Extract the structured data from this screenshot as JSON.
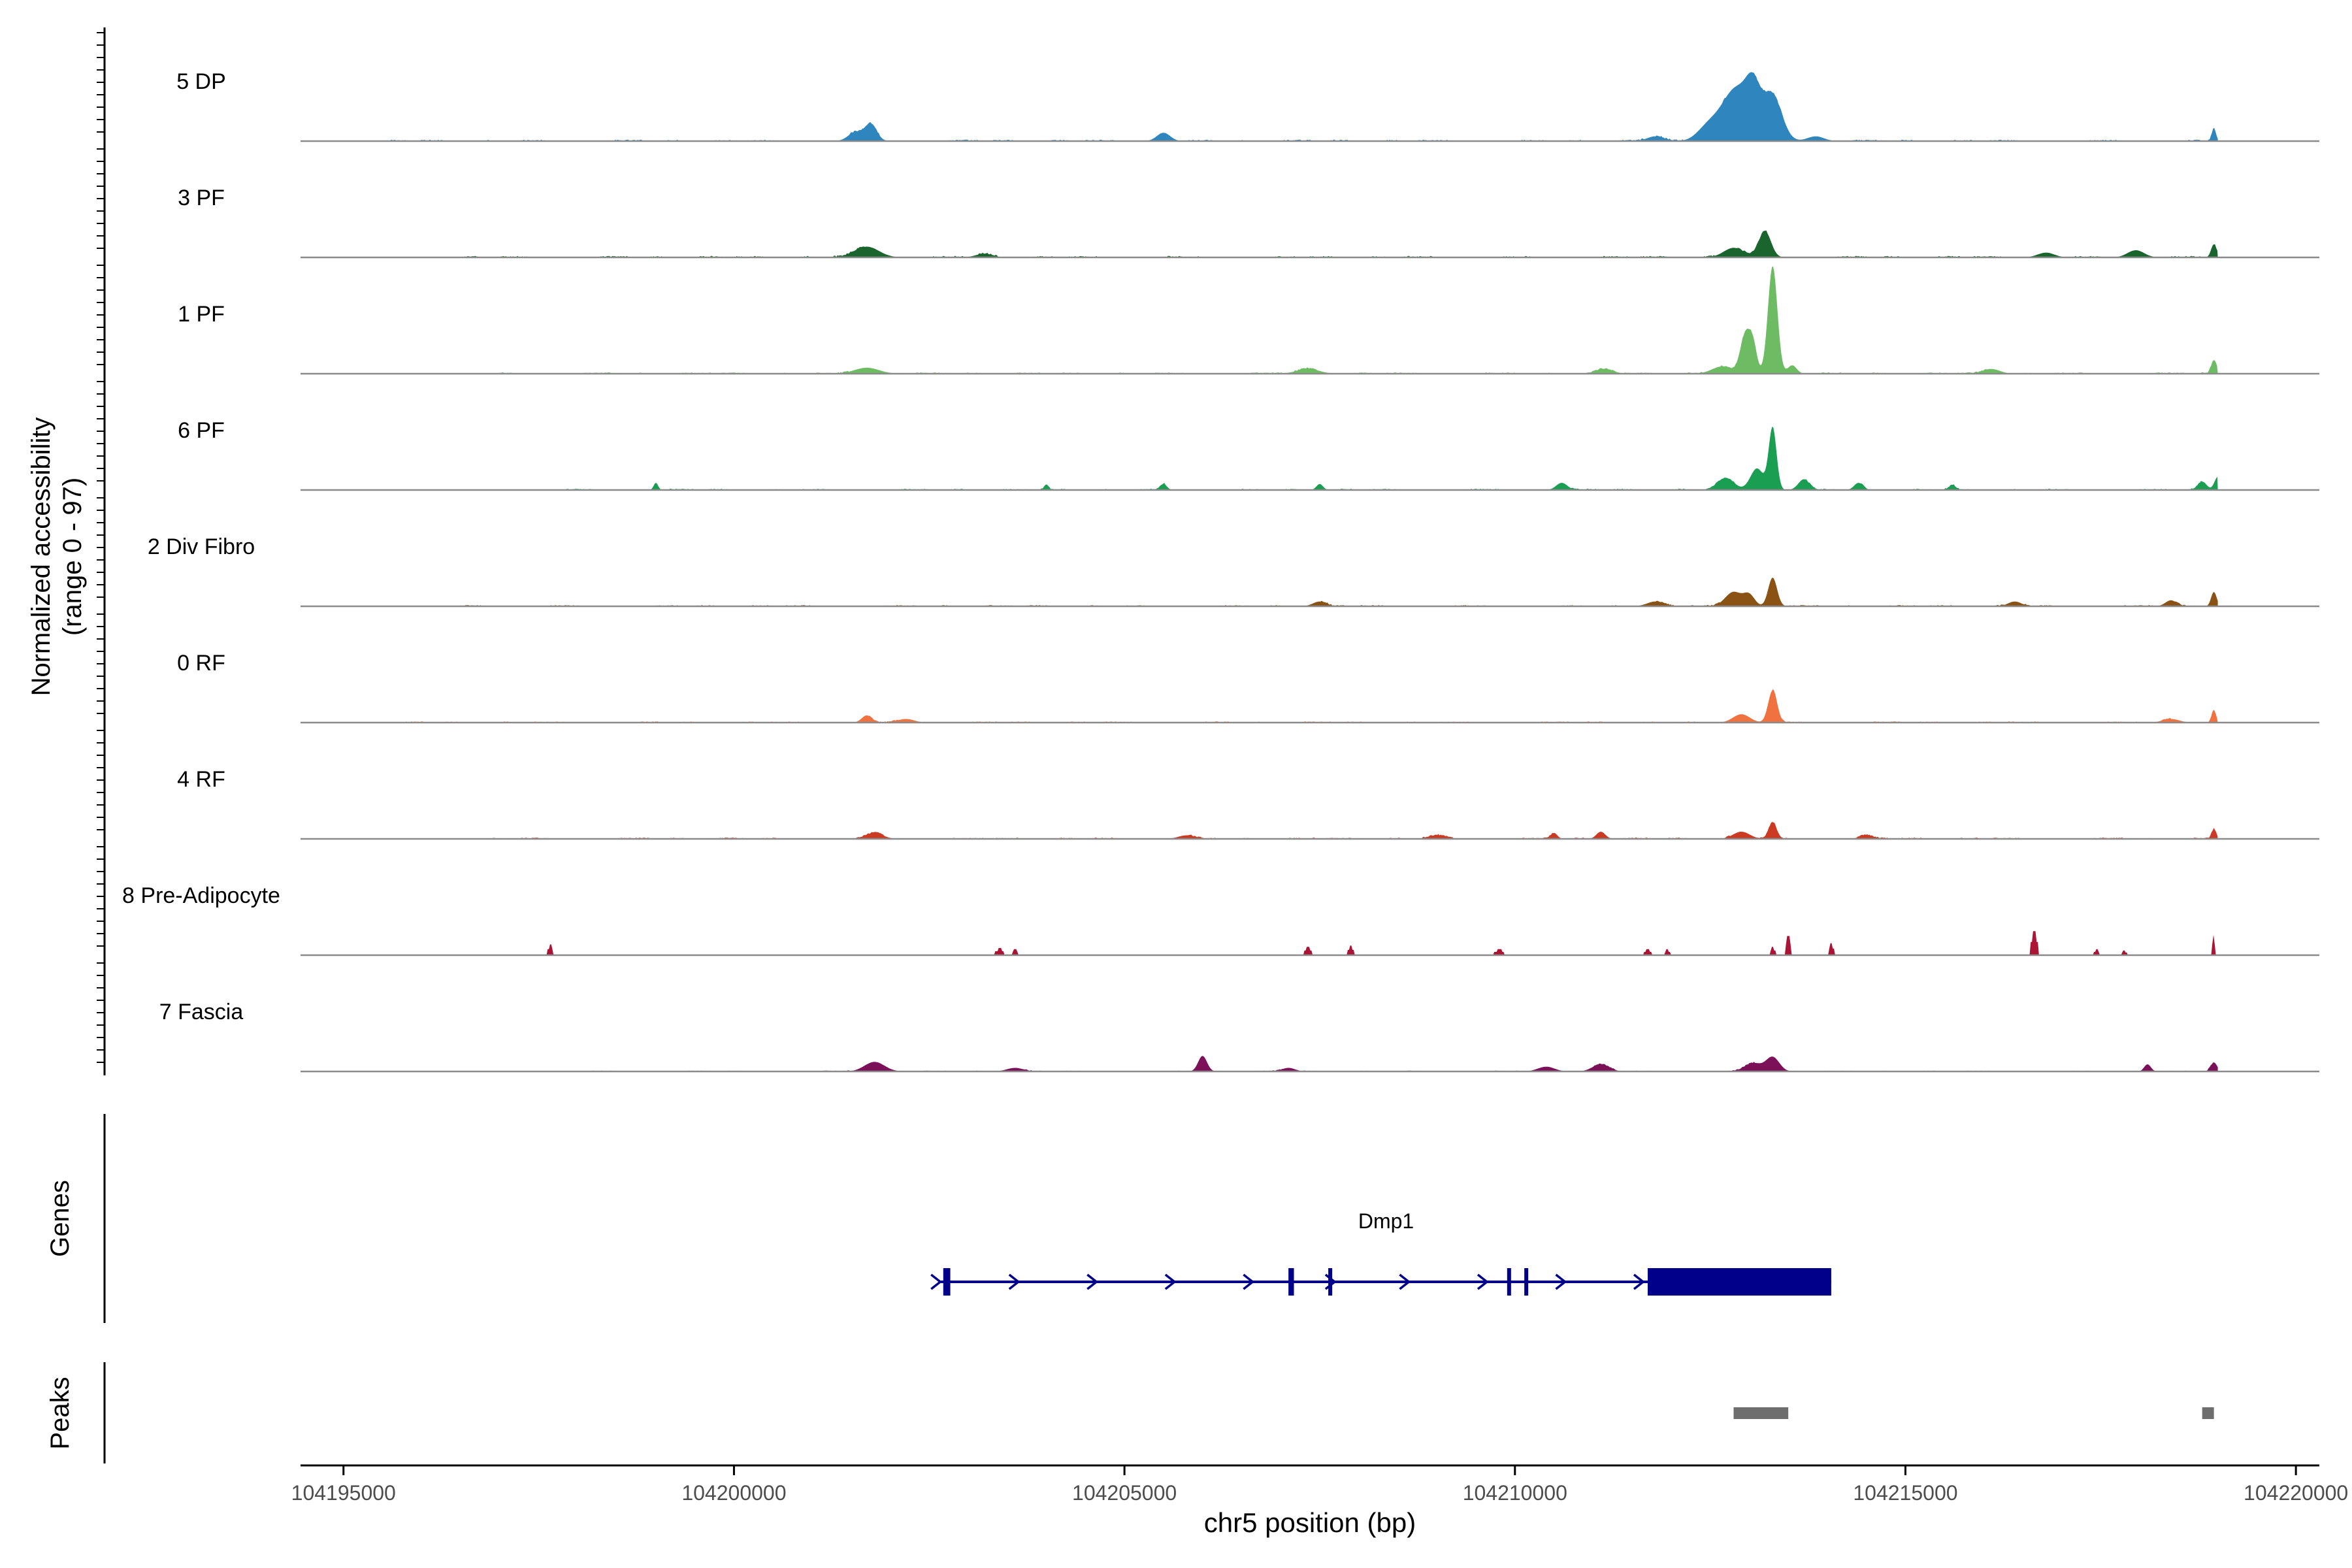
{
  "chart_data": {
    "type": "area",
    "title": "",
    "xlabel": "chr5 position (bp)",
    "ylabel_lines": [
      "Normalized accessibility",
      "(range 0 - 97)"
    ],
    "y_range": [
      0,
      97
    ],
    "xlim": [
      104194450,
      104220300
    ],
    "x_ticks": [
      104195000,
      104200000,
      104205000,
      104210000,
      104215000,
      104220000
    ],
    "x_tick_labels": [
      "104195000",
      "104200000",
      "104205000",
      "104210000",
      "104215000",
      "104220000"
    ],
    "tracks": [
      {
        "name": "5 DP",
        "color": "#2f86bf",
        "noise": 0.9,
        "density": 0.75,
        "x_start": 104195600,
        "peaks": [
          [
            104201750,
            14,
            110
          ],
          [
            104201550,
            7,
            130
          ],
          [
            104205500,
            7,
            120
          ],
          [
            104212850,
            45,
            300
          ],
          [
            104213300,
            35,
            170
          ],
          [
            104213050,
            24,
            120
          ],
          [
            104212450,
            8,
            180
          ],
          [
            104211800,
            4,
            150
          ],
          [
            104218950,
            10,
            40
          ],
          [
            104213850,
            4,
            150
          ]
        ]
      },
      {
        "name": "3 PF",
        "color": "#19652d",
        "noise": 0.9,
        "density": 0.8,
        "x_start": 104196300,
        "peaks": [
          [
            104201700,
            9,
            220
          ],
          [
            104213200,
            22,
            110
          ],
          [
            104212800,
            8,
            180
          ],
          [
            104218950,
            11,
            50
          ],
          [
            104217950,
            6,
            150
          ],
          [
            104216800,
            4,
            150
          ],
          [
            104203200,
            3,
            150
          ]
        ]
      },
      {
        "name": "1 PF",
        "color": "#6dbc63",
        "noise": 0.8,
        "density": 0.85,
        "x_start": 104197000,
        "peaks": [
          [
            104213300,
            90,
            85
          ],
          [
            104212950,
            32,
            90
          ],
          [
            104213050,
            22,
            70
          ],
          [
            104213550,
            7,
            80
          ],
          [
            104212650,
            6,
            180
          ],
          [
            104201700,
            5,
            220
          ],
          [
            104218950,
            11,
            50
          ],
          [
            104211150,
            4,
            150
          ],
          [
            104207350,
            4,
            200
          ],
          [
            104216100,
            4,
            150
          ]
        ]
      },
      {
        "name": "6 PF",
        "color": "#1a9f52",
        "noise": 0.8,
        "density": 0.7,
        "x_start": 104197200,
        "peaks": [
          [
            104213300,
            52,
            70
          ],
          [
            104213100,
            18,
            120
          ],
          [
            104212700,
            10,
            150
          ],
          [
            104213700,
            9,
            100
          ],
          [
            104214400,
            6,
            80
          ],
          [
            104219000,
            11,
            60
          ],
          [
            104218800,
            7,
            80
          ],
          [
            104199000,
            6,
            40
          ],
          [
            104205500,
            5,
            60
          ],
          [
            104207500,
            5,
            60
          ],
          [
            104210600,
            6,
            100
          ],
          [
            104215600,
            4,
            60
          ],
          [
            104204000,
            4,
            40
          ]
        ]
      },
      {
        "name": "2 Div Fibro",
        "color": "#8a5313",
        "noise": 0.8,
        "density": 0.75,
        "x_start": 104196500,
        "peaks": [
          [
            104213300,
            24,
            80
          ],
          [
            104212800,
            12,
            150
          ],
          [
            104213000,
            9,
            100
          ],
          [
            104218950,
            12,
            50
          ],
          [
            104218400,
            5,
            100
          ],
          [
            104216400,
            4,
            120
          ],
          [
            104207500,
            4,
            120
          ],
          [
            104211800,
            4,
            150
          ]
        ]
      },
      {
        "name": "0 RF",
        "color": "#ef7240",
        "noise": 0.7,
        "density": 0.8,
        "x_start": 104195800,
        "peaks": [
          [
            104213300,
            27,
            80
          ],
          [
            104212900,
            7,
            150
          ],
          [
            104201700,
            6,
            90
          ],
          [
            104218950,
            10,
            40
          ],
          [
            104218400,
            3,
            150
          ],
          [
            104202200,
            3,
            150
          ]
        ]
      },
      {
        "name": "4 RF",
        "color": "#cc3a24",
        "noise": 0.8,
        "density": 0.8,
        "x_start": 104196900,
        "peaks": [
          [
            104213300,
            14,
            70
          ],
          [
            104212900,
            6,
            150
          ],
          [
            104201800,
            5,
            150
          ],
          [
            104210500,
            5,
            60
          ],
          [
            104211100,
            6,
            80
          ],
          [
            104205800,
            3,
            150
          ],
          [
            104218950,
            8,
            40
          ],
          [
            104209000,
            3,
            150
          ],
          [
            104214500,
            3,
            120
          ]
        ]
      },
      {
        "name": "8 Pre-Adipocyte",
        "color": "#ab1434",
        "noise": 0.0,
        "density": 0.0,
        "x_start": 104197000,
        "peaks": [
          [
            104197650,
            9,
            40
          ],
          [
            104203400,
            6,
            60
          ],
          [
            104203600,
            5,
            40
          ],
          [
            104207350,
            7,
            50
          ],
          [
            104207900,
            8,
            50
          ],
          [
            104209800,
            5,
            70
          ],
          [
            104211700,
            5,
            60
          ],
          [
            104211950,
            5,
            40
          ],
          [
            104213300,
            7,
            40
          ],
          [
            104213500,
            16,
            40
          ],
          [
            104214050,
            10,
            40
          ],
          [
            104216650,
            20,
            50
          ],
          [
            104217450,
            5,
            40
          ],
          [
            104217800,
            4,
            40
          ],
          [
            104218950,
            17,
            25
          ]
        ]
      },
      {
        "name": "7 Fascia",
        "color": "#7d1159",
        "noise": 0.55,
        "density": 0.5,
        "x_start": 104197400,
        "peaks": [
          [
            104206000,
            13,
            80
          ],
          [
            104201800,
            8,
            180
          ],
          [
            104213300,
            12,
            120
          ],
          [
            104213050,
            7,
            150
          ],
          [
            104211100,
            6,
            150
          ],
          [
            104210400,
            4,
            150
          ],
          [
            104218100,
            6,
            60
          ],
          [
            104218950,
            7,
            60
          ],
          [
            104203600,
            3,
            150
          ],
          [
            104207100,
            3,
            120
          ]
        ]
      }
    ],
    "genes": [
      {
        "name": "Dmp1",
        "start": 104202650,
        "end": 104214050,
        "strand": "+",
        "exons": [
          [
            104202680,
            104202770
          ],
          [
            104207100,
            104207170
          ],
          [
            104207610,
            104207650
          ],
          [
            104209900,
            104209940
          ],
          [
            104210120,
            104210160
          ],
          [
            104211700,
            104214050
          ]
        ],
        "thick_from": 104211700,
        "chevrons": [
          104202600,
          104203600,
          104204600,
          104205600,
          104206600,
          104207650,
          104208600,
          104209600,
          104210600,
          104211600
        ]
      }
    ],
    "peaks": [
      {
        "start": 104212800,
        "end": 104213500
      },
      {
        "start": 104218800,
        "end": 104218950
      }
    ],
    "panels": {
      "genes_label": "Genes",
      "peaks_label": "Peaks"
    }
  }
}
